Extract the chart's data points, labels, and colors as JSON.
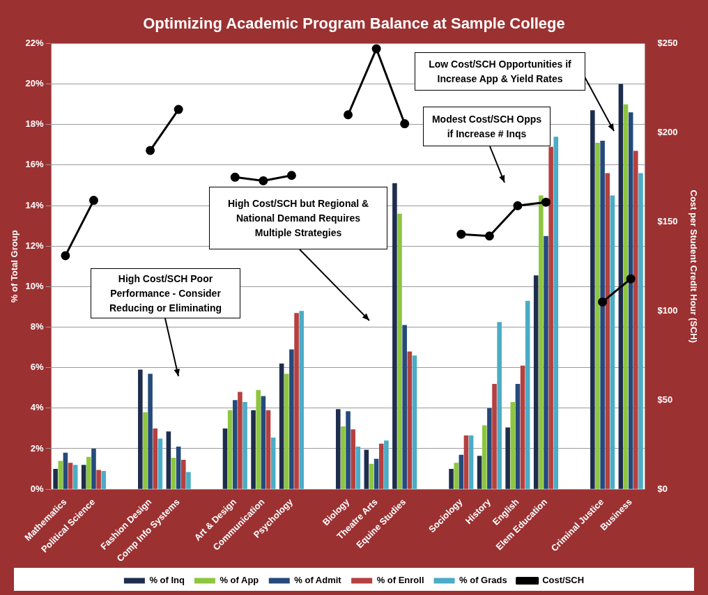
{
  "chart_data": {
    "type": "bar",
    "title": "Optimizing Academic Program Balance at Sample College",
    "ylabel": "% of Total Group",
    "y2label": "Cost per Student Credit Hour (SCH)",
    "categories": [
      "Mathematics",
      "Political Science",
      null,
      "Fashion Design",
      "Comp Info Systems",
      null,
      "Art & Design",
      "Communication",
      "Psychology",
      null,
      "Biology",
      "Theatre Arts",
      "Equine Studies",
      null,
      "Sociology",
      "History",
      "English",
      "Elem Education",
      null,
      "Criminal Justice",
      "Business"
    ],
    "series": [
      {
        "name": "% of Inq",
        "color": "#1f2d4d",
        "values": [
          1.0,
          1.2,
          null,
          5.9,
          2.85,
          null,
          3.0,
          3.9,
          6.2,
          null,
          3.95,
          1.95,
          15.1,
          null,
          1.0,
          1.65,
          3.05,
          10.55,
          null,
          18.7,
          20.0
        ]
      },
      {
        "name": "% of App",
        "color": "#8dc63f",
        "values": [
          1.4,
          1.6,
          null,
          3.8,
          1.55,
          null,
          3.9,
          4.9,
          5.7,
          null,
          3.1,
          1.25,
          13.6,
          null,
          1.3,
          3.15,
          4.3,
          14.5,
          null,
          17.1,
          19.0
        ]
      },
      {
        "name": "% of Admit",
        "color": "#254a7c",
        "values": [
          1.8,
          2.0,
          null,
          5.7,
          2.1,
          null,
          4.4,
          4.6,
          6.9,
          null,
          3.85,
          1.5,
          8.1,
          null,
          1.7,
          4.0,
          5.2,
          12.5,
          null,
          17.2,
          18.6
        ]
      },
      {
        "name": "% of Enroll",
        "color": "#b5403f",
        "values": [
          1.3,
          0.95,
          null,
          3.0,
          1.45,
          null,
          4.8,
          3.9,
          8.7,
          null,
          2.95,
          2.25,
          6.8,
          null,
          2.65,
          5.2,
          6.1,
          16.9,
          null,
          15.6,
          16.7
        ]
      },
      {
        "name": "% of Grads",
        "color": "#4bacc6",
        "values": [
          1.2,
          0.9,
          null,
          2.5,
          0.85,
          null,
          4.3,
          2.55,
          8.8,
          null,
          2.1,
          2.4,
          6.6,
          null,
          2.65,
          8.25,
          9.3,
          17.4,
          null,
          14.5,
          15.6
        ]
      },
      {
        "name": "Cost/SCH",
        "type": "line",
        "axis": "y2",
        "color": "#000000",
        "values": [
          131,
          162,
          null,
          190,
          213,
          null,
          175,
          173,
          176,
          null,
          210,
          247,
          205,
          null,
          143,
          142,
          159,
          161,
          null,
          105,
          118
        ]
      }
    ],
    "ylim": [
      0,
      22
    ],
    "yticks": [
      {
        "value": 0,
        "label": "0%"
      },
      {
        "value": 2,
        "label": "2%"
      },
      {
        "value": 4,
        "label": "4%"
      },
      {
        "value": 6,
        "label": "6%"
      },
      {
        "value": 8,
        "label": "8%"
      },
      {
        "value": 10,
        "label": "10%"
      },
      {
        "value": 12,
        "label": "12%"
      },
      {
        "value": 14,
        "label": "14%"
      },
      {
        "value": 16,
        "label": "16%"
      },
      {
        "value": 18,
        "label": "18%"
      },
      {
        "value": 20,
        "label": "20%"
      },
      {
        "value": 22,
        "label": "22%"
      }
    ],
    "y2lim": [
      0,
      250
    ],
    "y2ticks": [
      {
        "value": 0,
        "label": "$0"
      },
      {
        "value": 50,
        "label": "$50"
      },
      {
        "value": 100,
        "label": "$100"
      },
      {
        "value": 150,
        "label": "$150"
      },
      {
        "value": 200,
        "label": "$200"
      },
      {
        "value": 250,
        "label": "$250"
      }
    ],
    "grid": "y",
    "legend": "bottom",
    "marker": "circle",
    "line_style": "solid",
    "annotations": [
      "High Cost/SCH Poor Performance - Consider Reducing or Eliminating",
      "High Cost/SCH but Regional & National Demand Requires Multiple Strategies",
      "Modest Cost/SCH Opps if Increase # Inqs",
      "Low Cost/SCH Opportunities if Increase App & Yield Rates"
    ]
  }
}
